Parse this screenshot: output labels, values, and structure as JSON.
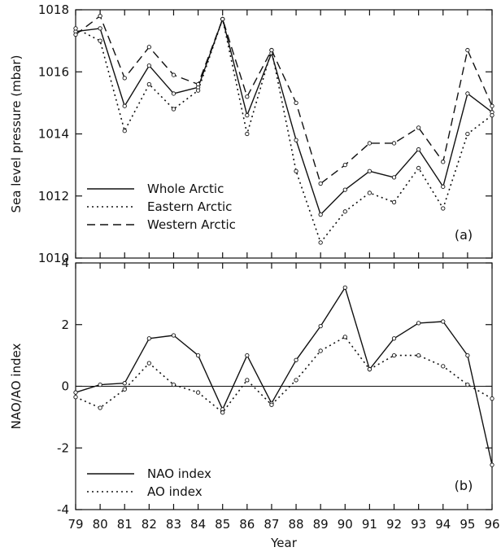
{
  "chart_data": [
    {
      "type": "line",
      "panel_label": "(a)",
      "ylabel": "Sea level pressure (mbar)",
      "ylim": [
        1010,
        1018
      ],
      "yticks": [
        1010,
        1012,
        1014,
        1016,
        1018
      ],
      "x": [
        79,
        80,
        81,
        82,
        83,
        84,
        85,
        86,
        87,
        88,
        89,
        90,
        91,
        92,
        93,
        94,
        95,
        96
      ],
      "legend_position": "lower-left",
      "series": [
        {
          "name": "Whole Arctic",
          "style": "solid",
          "values": [
            1017.3,
            1017.4,
            1014.9,
            1016.2,
            1015.3,
            1015.5,
            1017.7,
            1014.6,
            1016.6,
            1013.8,
            1011.4,
            1012.2,
            1012.8,
            1012.6,
            1013.5,
            1012.3,
            1015.3,
            1014.7
          ]
        },
        {
          "name": "Eastern Arctic",
          "style": "dotted",
          "values": [
            1017.4,
            1017.0,
            1014.1,
            1015.6,
            1014.8,
            1015.4,
            1017.7,
            1014.0,
            1016.7,
            1012.8,
            1010.5,
            1011.5,
            1012.1,
            1011.8,
            1012.9,
            1011.6,
            1014.0,
            1014.6
          ]
        },
        {
          "name": "Western Arctic",
          "style": "dashed",
          "values": [
            1017.2,
            1017.8,
            1015.8,
            1016.8,
            1015.9,
            1015.6,
            1017.7,
            1015.2,
            1016.7,
            1015.0,
            1012.4,
            1013.0,
            1013.7,
            1013.7,
            1014.2,
            1013.1,
            1016.7,
            1014.9
          ]
        }
      ]
    },
    {
      "type": "line",
      "panel_label": "(b)",
      "ylabel": "NAO/AO index",
      "xlabel": "Year",
      "ylim": [
        -4,
        4
      ],
      "yticks": [
        -4,
        -2,
        0,
        2,
        4
      ],
      "x": [
        79,
        80,
        81,
        82,
        83,
        84,
        85,
        86,
        87,
        88,
        89,
        90,
        91,
        92,
        93,
        94,
        95,
        96
      ],
      "xticks": [
        "79",
        "80",
        "81",
        "82",
        "83",
        "84",
        "85",
        "86",
        "87",
        "88",
        "89",
        "90",
        "91",
        "92",
        "93",
        "94",
        "95",
        "96"
      ],
      "zero_line": true,
      "legend_position": "lower-left",
      "series": [
        {
          "name": "NAO index",
          "style": "solid",
          "values": [
            -0.2,
            0.05,
            0.1,
            1.55,
            1.65,
            1.0,
            -0.75,
            1.0,
            -0.55,
            0.85,
            1.95,
            3.2,
            0.55,
            1.55,
            2.05,
            2.1,
            1.0,
            -2.55
          ]
        },
        {
          "name": "AO  index",
          "style": "dotted",
          "values": [
            -0.35,
            -0.7,
            -0.1,
            0.75,
            0.05,
            -0.2,
            -0.85,
            0.2,
            -0.6,
            0.2,
            1.15,
            1.6,
            0.55,
            1.0,
            1.0,
            0.65,
            0.05,
            -0.4
          ]
        }
      ]
    }
  ]
}
